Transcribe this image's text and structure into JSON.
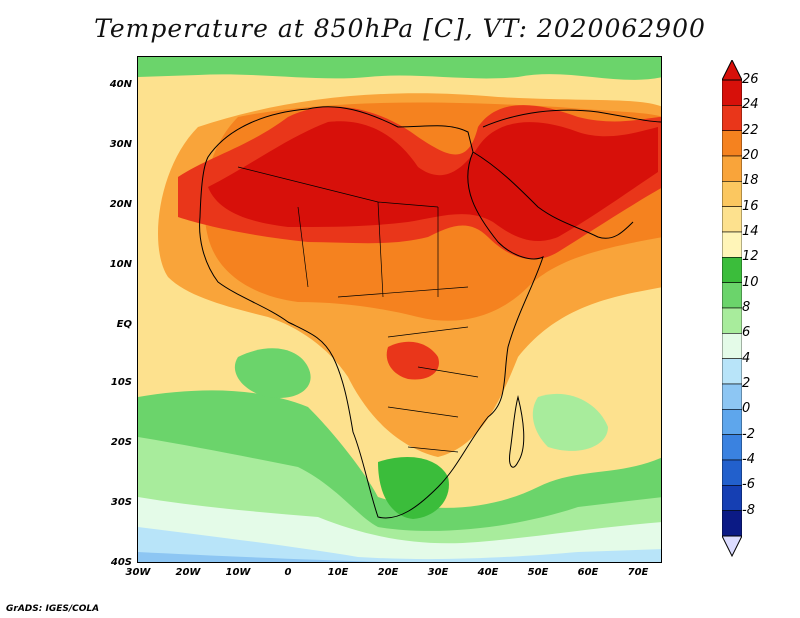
{
  "title": "Temperature at 850hPa [C], VT: 2020062900",
  "footer": "GrADS: IGES/COLA",
  "map": {
    "lat_labels": [
      "40N",
      "30N",
      "20N",
      "10N",
      "EQ",
      "10S",
      "20S",
      "30S",
      "40S"
    ],
    "lon_labels": [
      "30W",
      "20W",
      "10W",
      "0",
      "10E",
      "20E",
      "30E",
      "40E",
      "50E",
      "60E",
      "70E"
    ],
    "lon_range": [
      -30,
      75
    ],
    "lat_range": [
      -40,
      45
    ]
  },
  "colorbar": {
    "labels": [
      "26",
      "24",
      "22",
      "20",
      "18",
      "16",
      "14",
      "12",
      "10",
      "8",
      "6",
      "4",
      "2",
      "0",
      "-2",
      "-4",
      "-6",
      "-8"
    ],
    "colors": [
      "#d7100a",
      "#e9361a",
      "#f5821f",
      "#f9a43a",
      "#fbc760",
      "#fde18e",
      "#fff5b8",
      "#3bbd3b",
      "#6bd46b",
      "#a8ec9c",
      "#e4fbe8",
      "#b8e4f9",
      "#8dc6f3",
      "#5ea6ec",
      "#3a82e0",
      "#2260cc",
      "#153fb3",
      "#0b1a85"
    ],
    "top_color": "#d7100a",
    "bottom_color": "#dcdcff"
  }
}
